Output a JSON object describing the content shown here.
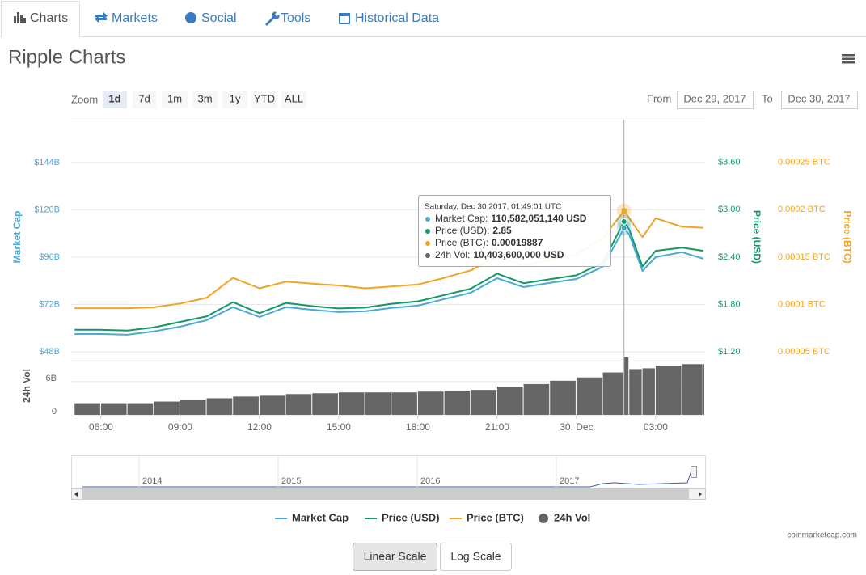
{
  "tabs": [
    "Charts",
    "Markets",
    "Social",
    "Tools",
    "Historical Data"
  ],
  "title": "Ripple Charts",
  "zoom": {
    "label": "Zoom",
    "buttons": [
      "1d",
      "7d",
      "1m",
      "3m",
      "1y",
      "YTD",
      "ALL"
    ]
  },
  "range": {
    "from_label": "From",
    "from": "Dec 29, 2017",
    "to_label": "To",
    "to": "Dec 30, 2017"
  },
  "chart_data": {
    "type": "line",
    "x": [
      5,
      6,
      7,
      8,
      9,
      10,
      11,
      12,
      13,
      14,
      15,
      16,
      17,
      18,
      19,
      20,
      21,
      22,
      23,
      24,
      25,
      25.8,
      26,
      26.5,
      27,
      28,
      28.8
    ],
    "xlim": [
      4.87,
      28.87
    ],
    "xticks": [
      {
        "value": 6,
        "label": "06:00"
      },
      {
        "value": 9,
        "label": "09:00"
      },
      {
        "value": 12,
        "label": "12:00"
      },
      {
        "value": 15,
        "label": "15:00"
      },
      {
        "value": 18,
        "label": "18:00"
      },
      {
        "value": 21,
        "label": "21:00"
      },
      {
        "value": 24,
        "label": "30. Dec"
      },
      {
        "value": 27,
        "label": "03:00"
      }
    ],
    "ylabel": "Market Cap",
    "ylim": [
      45.5,
      165.7
    ],
    "yticks": [
      {
        "value": 48,
        "label": "$48B"
      },
      {
        "value": 72,
        "label": "$72B"
      },
      {
        "value": 96,
        "label": "$96B"
      },
      {
        "value": 120,
        "label": "$120B"
      },
      {
        "value": 144,
        "label": "$144B"
      }
    ],
    "y2label": "Price (USD)",
    "y2lim": [
      1.14,
      4.14
    ],
    "y2ticks": [
      {
        "value": 1.2,
        "label": "$1.20"
      },
      {
        "value": 1.8,
        "label": "$1.80"
      },
      {
        "value": 2.4,
        "label": "$2.40"
      },
      {
        "value": 3.0,
        "label": "$3.00"
      },
      {
        "value": 3.6,
        "label": "$3.60"
      }
    ],
    "y3label": "Price (BTC)",
    "y3lim": [
      4.49e-05,
      0.000295
    ],
    "y3ticks": [
      {
        "value": 5e-05,
        "label": "0.00005 BTC"
      },
      {
        "value": 0.0001,
        "label": "0.0001 BTC"
      },
      {
        "value": 0.00015,
        "label": "0.00015 BTC"
      },
      {
        "value": 0.0002,
        "label": "0.0002 BTC"
      },
      {
        "value": 0.00025,
        "label": "0.00025 BTC"
      }
    ],
    "vol_label": "24h Vol",
    "vol_ylim": [
      0,
      10.5
    ],
    "vol_ticks": [
      0,
      {
        "value": 6,
        "label": "6B"
      }
    ],
    "grid": true,
    "series": [
      {
        "name": "Market Cap",
        "color": "#4aa9d8",
        "axis": "y",
        "values": [
          57.0,
          57.0,
          56.6,
          58.3,
          60.7,
          64.0,
          70.6,
          65.6,
          70.6,
          69.3,
          68.1,
          68.5,
          70.2,
          71.4,
          74.7,
          77.9,
          85.3,
          80.8,
          82.9,
          84.9,
          91.1,
          110.6,
          107.5,
          89,
          96,
          98.5,
          95.2
        ]
      },
      {
        "name": "Price (USD)",
        "color": "#119966",
        "axis": "y2",
        "values": [
          1.48,
          1.48,
          1.47,
          1.51,
          1.58,
          1.65,
          1.83,
          1.69,
          1.82,
          1.78,
          1.75,
          1.76,
          1.81,
          1.84,
          1.92,
          2.0,
          2.19,
          2.07,
          2.12,
          2.17,
          2.33,
          2.85,
          2.75,
          2.28,
          2.48,
          2.52,
          2.48
        ]
      },
      {
        "name": "Price (BTC)",
        "color": "#f0a424",
        "axis": "y3",
        "values": [
          9.6e-05,
          9.6e-05,
          9.6e-05,
          9.7e-05,
          0.000101,
          0.000107,
          0.000128,
          0.000117,
          0.000124,
          0.000122,
          0.00012,
          0.000117,
          0.000119,
          0.000121,
          0.000128,
          0.000136,
          0.00015,
          0.000141,
          0.000147,
          0.000153,
          0.00017,
          0.00019887,
          0.000191,
          0.000171,
          0.000191,
          0.000182,
          0.000181
        ]
      },
      {
        "name": "24h Vol",
        "color": "#666666",
        "axis": "vol",
        "values": [
          2.1,
          2.1,
          2.1,
          2.4,
          2.7,
          3.0,
          3.3,
          3.45,
          3.75,
          3.9,
          4.05,
          4.05,
          4.05,
          4.2,
          4.35,
          4.5,
          5.1,
          5.55,
          6.15,
          6.75,
          7.65,
          10.4036,
          8.25,
          8.4,
          8.85,
          9.15,
          9.15
        ]
      }
    ],
    "tooltip": {
      "title": "Saturday, Dec 30 2017, 01:49:01 UTC",
      "items": [
        {
          "label": "Market Cap:",
          "value": "110,582,051,140 USD"
        },
        {
          "label": "Price (USD):",
          "value": "2.85"
        },
        {
          "label": "Price (BTC):",
          "value": "0.00019887"
        },
        {
          "label": "24h Vol:",
          "value": "10,403,600,000 USD"
        }
      ]
    }
  },
  "navigator": {
    "years": [
      "2014",
      "2015",
      "2016",
      "2017"
    ]
  },
  "credit": "coinmarketcap.com",
  "scale_buttons": [
    "Linear Scale",
    "Log Scale"
  ]
}
